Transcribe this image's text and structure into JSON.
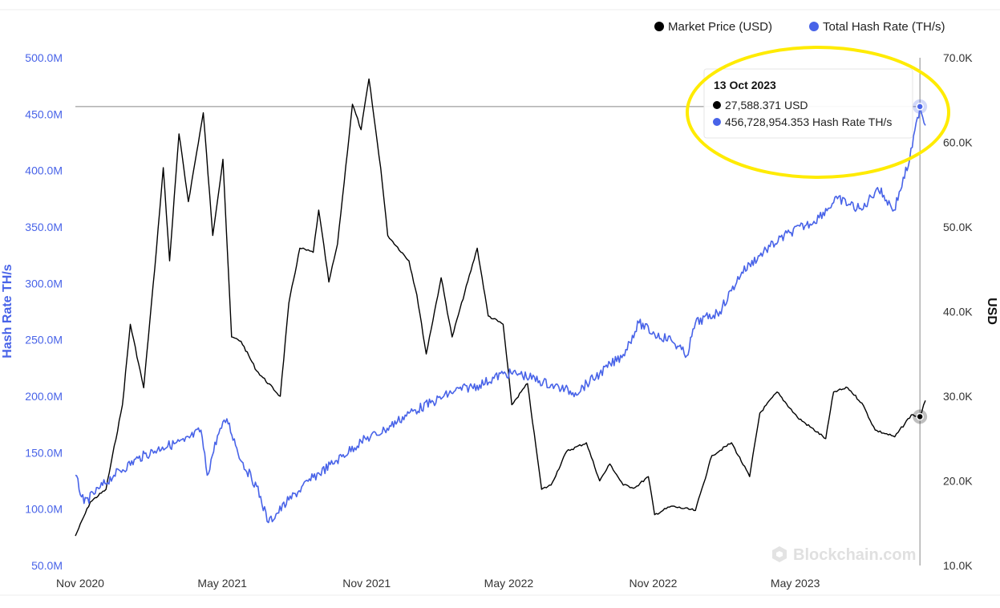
{
  "legend": {
    "price_label": "Market Price (USD)",
    "hash_label": "Total Hash Rate (TH/s)"
  },
  "colors": {
    "price": "#000000",
    "hash": "#4863e8",
    "highlight": "#ffeb00",
    "crosshair": "#888888"
  },
  "axes": {
    "left_title": "Hash Rate TH/s",
    "right_title": "USD",
    "left_ticks": [
      "50.0M",
      "100.0M",
      "150.0M",
      "200.0M",
      "250.0M",
      "300.0M",
      "350.0M",
      "400.0M",
      "450.0M",
      "500.0M"
    ],
    "right_ticks": [
      "10.0K",
      "20.0K",
      "30.0K",
      "40.0K",
      "50.0K",
      "60.0K",
      "70.0K"
    ],
    "x_ticks": [
      "Nov 2020",
      "May 2021",
      "Nov 2021",
      "May 2022",
      "Nov 2022",
      "May 2023"
    ]
  },
  "tooltip": {
    "date": "13 Oct 2023",
    "price_text": "27,588.371 USD",
    "hash_text": "456,728,954.353 Hash Rate TH/s"
  },
  "watermark": "Blockchain.com",
  "chart_data": {
    "type": "line",
    "x_range": [
      "2020-11-01",
      "2023-10-20"
    ],
    "y_left_range": [
      50000000,
      500000000
    ],
    "y_right_range": [
      10000,
      70000
    ],
    "series": [
      {
        "name": "Market Price (USD)",
        "axis": "right",
        "points": [
          [
            "2020-11-01",
            13500
          ],
          [
            "2020-11-20",
            17500
          ],
          [
            "2020-12-10",
            19000
          ],
          [
            "2020-12-31",
            29000
          ],
          [
            "2021-01-10",
            38500
          ],
          [
            "2021-01-27",
            31000
          ],
          [
            "2021-02-10",
            45000
          ],
          [
            "2021-02-21",
            57000
          ],
          [
            "2021-03-01",
            46000
          ],
          [
            "2021-03-13",
            61000
          ],
          [
            "2021-03-25",
            53000
          ],
          [
            "2021-04-13",
            63500
          ],
          [
            "2021-04-25",
            49000
          ],
          [
            "2021-05-08",
            58000
          ],
          [
            "2021-05-19",
            37000
          ],
          [
            "2021-05-31",
            36500
          ],
          [
            "2021-06-20",
            33000
          ],
          [
            "2021-07-20",
            30000
          ],
          [
            "2021-07-31",
            41000
          ],
          [
            "2021-08-14",
            47500
          ],
          [
            "2021-08-31",
            47000
          ],
          [
            "2021-09-07",
            52000
          ],
          [
            "2021-09-20",
            43500
          ],
          [
            "2021-10-01",
            48000
          ],
          [
            "2021-10-20",
            64500
          ],
          [
            "2021-10-31",
            61500
          ],
          [
            "2021-11-10",
            67500
          ],
          [
            "2021-11-25",
            57000
          ],
          [
            "2021-12-04",
            49000
          ],
          [
            "2021-12-31",
            46000
          ],
          [
            "2022-01-10",
            42000
          ],
          [
            "2022-01-22",
            35000
          ],
          [
            "2022-02-10",
            44000
          ],
          [
            "2022-02-24",
            37000
          ],
          [
            "2022-03-28",
            47500
          ],
          [
            "2022-04-11",
            39500
          ],
          [
            "2022-04-30",
            38500
          ],
          [
            "2022-05-11",
            29000
          ],
          [
            "2022-05-31",
            31500
          ],
          [
            "2022-06-13",
            22500
          ],
          [
            "2022-06-18",
            19000
          ],
          [
            "2022-06-30",
            19500
          ],
          [
            "2022-07-20",
            23500
          ],
          [
            "2022-08-14",
            24500
          ],
          [
            "2022-08-31",
            20000
          ],
          [
            "2022-09-13",
            22000
          ],
          [
            "2022-09-30",
            19500
          ],
          [
            "2022-10-15",
            19200
          ],
          [
            "2022-11-01",
            20500
          ],
          [
            "2022-11-09",
            16000
          ],
          [
            "2022-11-30",
            17000
          ],
          [
            "2022-12-31",
            16500
          ],
          [
            "2023-01-21",
            23000
          ],
          [
            "2023-02-15",
            24500
          ],
          [
            "2023-03-10",
            20500
          ],
          [
            "2023-03-23",
            28000
          ],
          [
            "2023-04-14",
            30500
          ],
          [
            "2023-05-10",
            27500
          ],
          [
            "2023-06-15",
            25000
          ],
          [
            "2023-06-25",
            30500
          ],
          [
            "2023-07-13",
            31000
          ],
          [
            "2023-07-31",
            29200
          ],
          [
            "2023-08-17",
            26000
          ],
          [
            "2023-09-11",
            25200
          ],
          [
            "2023-10-02",
            27800
          ],
          [
            "2023-10-13",
            27588
          ],
          [
            "2023-10-20",
            29500
          ]
        ]
      },
      {
        "name": "Total Hash Rate (TH/s)",
        "axis": "left",
        "points": [
          [
            "2020-11-01",
            130000000
          ],
          [
            "2020-11-12",
            105000000
          ],
          [
            "2020-12-01",
            118000000
          ],
          [
            "2020-12-20",
            130000000
          ],
          [
            "2021-01-20",
            145000000
          ],
          [
            "2021-02-20",
            155000000
          ],
          [
            "2021-03-20",
            160000000
          ],
          [
            "2021-04-10",
            170000000
          ],
          [
            "2021-04-18",
            130000000
          ],
          [
            "2021-05-01",
            165000000
          ],
          [
            "2021-05-13",
            180000000
          ],
          [
            "2021-06-01",
            142000000
          ],
          [
            "2021-06-20",
            120000000
          ],
          [
            "2021-07-05",
            88000000
          ],
          [
            "2021-07-31",
            108000000
          ],
          [
            "2021-08-31",
            128000000
          ],
          [
            "2021-09-30",
            143000000
          ],
          [
            "2021-10-31",
            160000000
          ],
          [
            "2021-11-30",
            170000000
          ],
          [
            "2021-12-31",
            185000000
          ],
          [
            "2022-01-31",
            195000000
          ],
          [
            "2022-02-28",
            205000000
          ],
          [
            "2022-03-31",
            210000000
          ],
          [
            "2022-04-30",
            220000000
          ],
          [
            "2022-05-20",
            220000000
          ],
          [
            "2022-06-30",
            210000000
          ],
          [
            "2022-07-31",
            203000000
          ],
          [
            "2022-08-31",
            220000000
          ],
          [
            "2022-09-30",
            237000000
          ],
          [
            "2022-10-20",
            265000000
          ],
          [
            "2022-11-09",
            255000000
          ],
          [
            "2022-11-30",
            250000000
          ],
          [
            "2022-12-20",
            236000000
          ],
          [
            "2022-12-31",
            265000000
          ],
          [
            "2023-01-31",
            275000000
          ],
          [
            "2023-02-28",
            310000000
          ],
          [
            "2023-03-31",
            330000000
          ],
          [
            "2023-04-30",
            345000000
          ],
          [
            "2023-05-31",
            355000000
          ],
          [
            "2023-06-30",
            375000000
          ],
          [
            "2023-07-31",
            365000000
          ],
          [
            "2023-08-20",
            385000000
          ],
          [
            "2023-09-10",
            365000000
          ],
          [
            "2023-09-30",
            410000000
          ],
          [
            "2023-10-13",
            456729000
          ],
          [
            "2023-10-20",
            440000000
          ]
        ]
      }
    ]
  }
}
